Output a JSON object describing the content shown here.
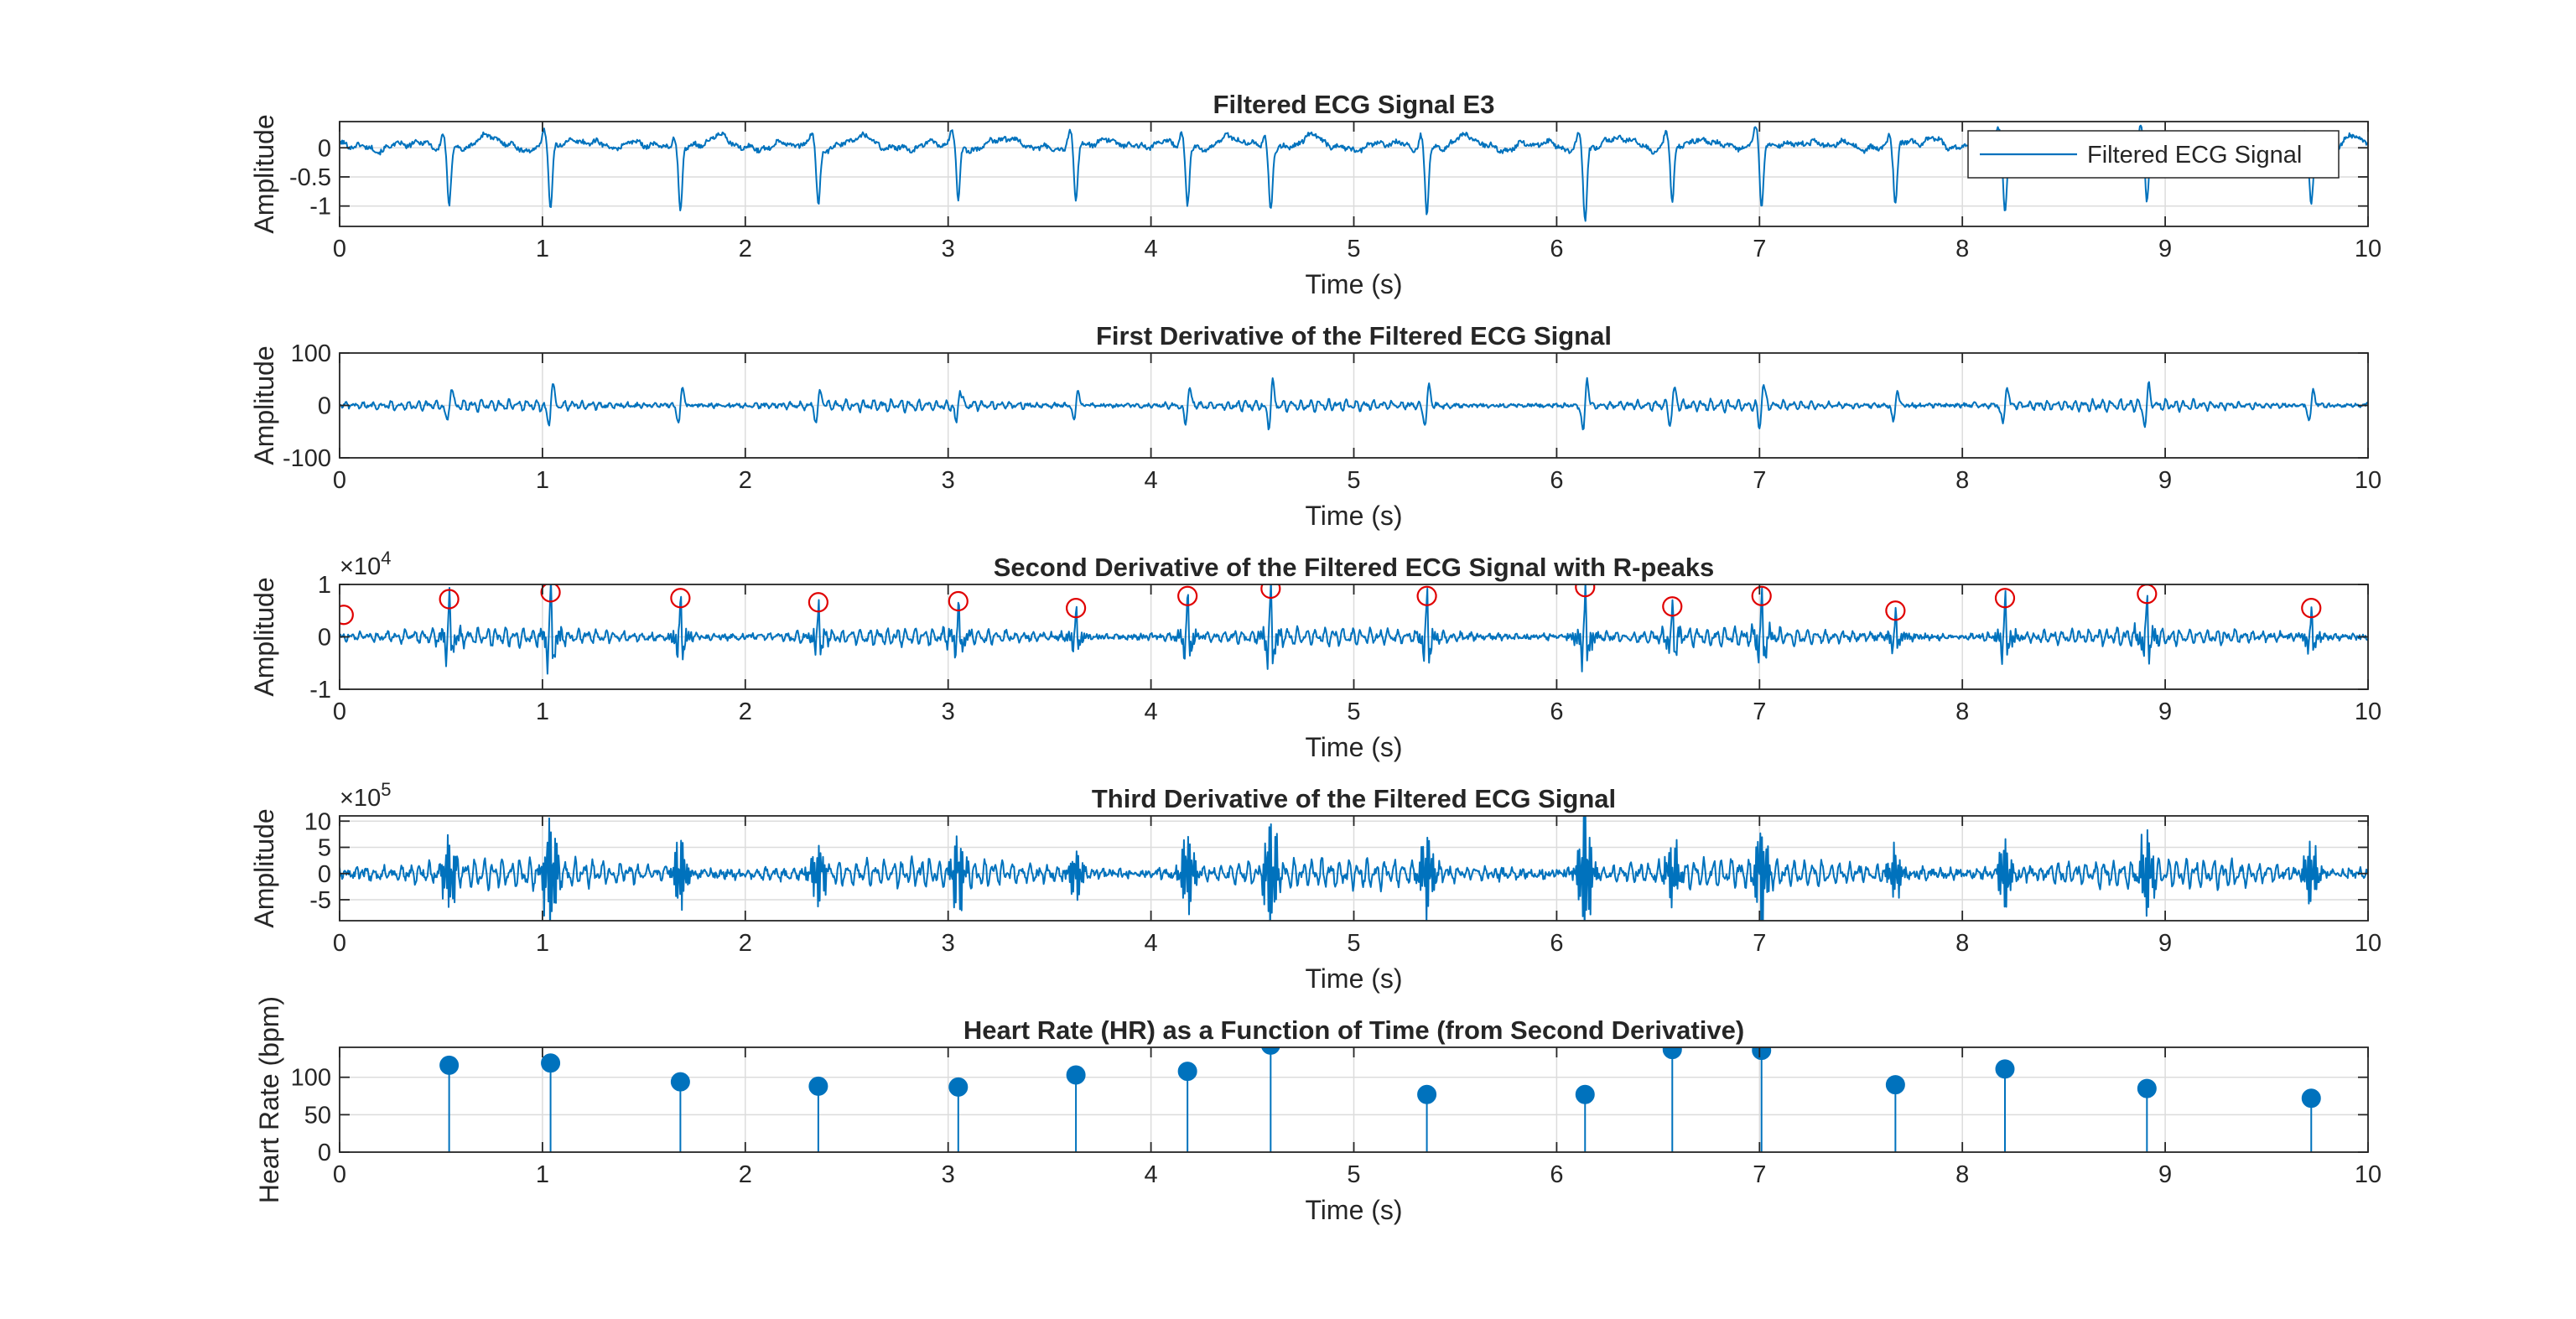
{
  "colors": {
    "signal": "#0072BD",
    "peak_marker": "#E00000",
    "hr_marker": "#0072BD",
    "grid": "#DCDCDC",
    "axes": "#262626"
  },
  "chart_data": [
    {
      "id": "filtered",
      "type": "line",
      "title": "Filtered ECG Signal E3",
      "xlabel": "Time (s)",
      "ylabel": "Amplitude",
      "xlim": [
        0,
        10
      ],
      "ylim": [
        -1.35,
        0.45
      ],
      "xticks": [
        "0",
        "1",
        "2",
        "3",
        "4",
        "5",
        "6",
        "7",
        "8",
        "9",
        "10"
      ],
      "yticks": [
        {
          "v": 0,
          "label": "0"
        },
        {
          "v": -0.5,
          "label": "-0.5"
        },
        {
          "v": -1,
          "label": "-1"
        }
      ],
      "grid": true,
      "exponent": "",
      "legend": {
        "position": "top-right",
        "entries": [
          "Filtered ECG Signal"
        ]
      },
      "series": [
        {
          "name": "Filtered ECG Signal",
          "beat_times": [
            0.54,
            1.04,
            1.68,
            2.36,
            3.05,
            3.63,
            4.18,
            4.59,
            5.36,
            6.14,
            6.57,
            7.01,
            7.67,
            8.21,
            8.91,
            9.72
          ],
          "beat_depths": [
            -0.98,
            -1.1,
            -1.05,
            -0.98,
            -0.95,
            -1.02,
            -1.0,
            -1.05,
            -1.12,
            -1.25,
            -1.0,
            -1.15,
            -1.0,
            -1.12,
            -1.0,
            -0.95
          ],
          "baseline_noise": 0.12
        }
      ]
    },
    {
      "id": "first",
      "type": "line",
      "title": "First Derivative of the Filtered ECG Signal",
      "xlabel": "Time (s)",
      "ylabel": "Amplitude",
      "xlim": [
        0,
        10
      ],
      "ylim": [
        -100,
        100
      ],
      "xticks": [
        "0",
        "1",
        "2",
        "3",
        "4",
        "5",
        "6",
        "7",
        "8",
        "9",
        "10"
      ],
      "yticks": [
        {
          "v": 100,
          "label": "100"
        },
        {
          "v": 0,
          "label": "0"
        },
        {
          "v": -100,
          "label": "-100"
        }
      ],
      "grid": true,
      "exponent": "",
      "series": [
        {
          "beat_times": [
            0.54,
            1.04,
            1.68,
            2.36,
            3.05,
            3.63,
            4.18,
            4.59,
            5.36,
            6.14,
            6.57,
            7.01,
            7.67,
            8.21,
            8.91,
            9.72
          ],
          "beat_amp": [
            50,
            60,
            50,
            45,
            50,
            45,
            50,
            60,
            55,
            75,
            50,
            60,
            45,
            55,
            55,
            45
          ],
          "baseline_noise": 12
        }
      ]
    },
    {
      "id": "second",
      "type": "line",
      "title": "Second Derivative of the Filtered ECG Signal with R-peaks",
      "xlabel": "Time (s)",
      "ylabel": "Amplitude",
      "xlim": [
        0,
        10
      ],
      "ylim": [
        -1,
        1
      ],
      "xticks": [
        "0",
        "1",
        "2",
        "3",
        "4",
        "5",
        "6",
        "7",
        "8",
        "9",
        "10"
      ],
      "yticks": [
        {
          "v": 1,
          "label": "1"
        },
        {
          "v": 0,
          "label": "0"
        },
        {
          "v": -1,
          "label": "-1"
        }
      ],
      "grid": true,
      "exponent": "4",
      "series": [
        {
          "beat_times": [
            0.54,
            1.04,
            1.68,
            2.36,
            3.05,
            3.63,
            4.18,
            4.59,
            5.36,
            6.14,
            6.57,
            7.01,
            7.67,
            8.21,
            8.91,
            9.72
          ],
          "beat_amp": [
            0.72,
            0.85,
            0.74,
            0.66,
            0.68,
            0.55,
            0.78,
            0.92,
            0.78,
            0.95,
            0.58,
            0.78,
            0.5,
            0.74,
            0.82,
            0.55
          ],
          "baseline_noise": 0.18
        }
      ],
      "peaks": {
        "x": [
          0.02,
          0.54,
          1.04,
          1.68,
          2.36,
          3.05,
          3.63,
          4.18,
          4.59,
          5.36,
          6.14,
          6.57,
          7.01,
          7.67,
          8.21,
          8.91,
          9.72
        ],
        "y": [
          0.42,
          0.72,
          0.85,
          0.74,
          0.66,
          0.68,
          0.55,
          0.78,
          0.92,
          0.78,
          0.95,
          0.58,
          0.78,
          0.5,
          0.74,
          0.82,
          0.55
        ]
      }
    },
    {
      "id": "third",
      "type": "line",
      "title": "Third Derivative of the Filtered ECG Signal",
      "xlabel": "Time (s)",
      "ylabel": "Amplitude",
      "xlim": [
        0,
        10
      ],
      "ylim": [
        -9,
        11
      ],
      "xticks": [
        "0",
        "1",
        "2",
        "3",
        "4",
        "5",
        "6",
        "7",
        "8",
        "9",
        "10"
      ],
      "yticks": [
        {
          "v": 10,
          "label": "10"
        },
        {
          "v": 5,
          "label": "5"
        },
        {
          "v": 0,
          "label": "0"
        },
        {
          "v": -5,
          "label": "-5"
        }
      ],
      "grid": true,
      "exponent": "5",
      "series": [
        {
          "beat_times": [
            0.54,
            1.04,
            1.68,
            2.36,
            3.05,
            3.63,
            4.18,
            4.59,
            5.36,
            6.14,
            6.57,
            7.01,
            7.67,
            8.21,
            8.91,
            9.72
          ],
          "beat_amp": [
            7,
            11,
            7,
            6,
            7,
            5,
            8,
            11,
            8,
            12,
            6,
            10,
            5,
            7,
            8,
            6
          ],
          "baseline_noise": 3
        }
      ]
    },
    {
      "id": "hr",
      "type": "stem",
      "title": "Heart Rate (HR) as a Function of Time (from Second Derivative)",
      "xlabel": "Time (s)",
      "ylabel": "Heart Rate (bpm)",
      "xlim": [
        0,
        10
      ],
      "ylim": [
        0,
        140
      ],
      "xticks": [
        "0",
        "1",
        "2",
        "3",
        "4",
        "5",
        "6",
        "7",
        "8",
        "9",
        "10"
      ],
      "yticks": [
        {
          "v": 100,
          "label": "100"
        },
        {
          "v": 50,
          "label": "50"
        },
        {
          "v": 0,
          "label": "0"
        }
      ],
      "grid": true,
      "exponent": "",
      "series": [
        {
          "x": [
            0.54,
            1.04,
            1.68,
            2.36,
            3.05,
            3.63,
            4.18,
            4.59,
            5.36,
            6.14,
            6.57,
            7.01,
            7.67,
            8.21,
            8.91,
            9.72
          ],
          "y": [
            116,
            119,
            94,
            88,
            87,
            103,
            108,
            143,
            77,
            77,
            137,
            136,
            90,
            111,
            85,
            72
          ]
        }
      ]
    }
  ]
}
